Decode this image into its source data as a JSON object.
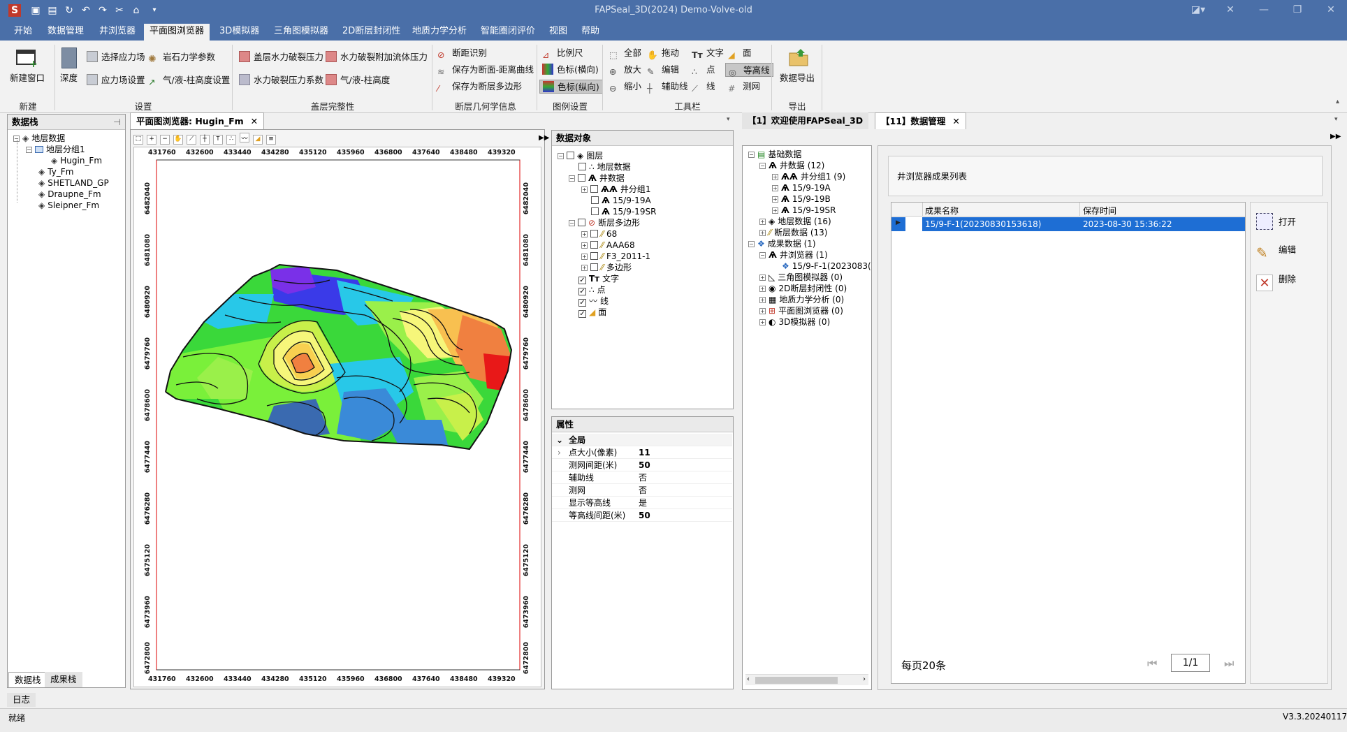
{
  "app": {
    "title": "FAPSeal_3D(2024) Demo-Volve-old",
    "version": "V3.3.20240117",
    "status": "就绪",
    "log_label": "日志"
  },
  "menu": [
    "开始",
    "数据管理",
    "井浏览器",
    "平面图浏览器",
    "3D模拟器",
    "三角图模拟器",
    "2D断层封闭性",
    "地质力学分析",
    "智能圈闭评价",
    "视图",
    "帮助"
  ],
  "menu_active": "平面图浏览器",
  "ribbon": {
    "new_window": "新建窗口",
    "depth": "深度",
    "select_stress": "选择应力场",
    "rock_params": "岩石力学参数",
    "stress_setting": "应力场设置",
    "gas_oil_height_setting": "气/液-柱高度设置",
    "caprock_frac_pressure": "盖层水力破裂压力",
    "frac_extra_pressure": "水力破裂附加流体压力",
    "frac_pressure_coef": "水力破裂压力系数",
    "gas_oil_height": "气/液-柱高度",
    "fault_identify": "断距识别",
    "save_fault_curve": "保存为断面-距离曲线",
    "save_fault_polygon": "保存为断层多边形",
    "scale": "比例尺",
    "colorbar_h": "色标(横向)",
    "colorbar_v": "色标(纵向)",
    "all": "全部",
    "drag": "拖动",
    "text": "文字",
    "face": "面",
    "zoom_in": "放大",
    "edit": "编辑",
    "point": "点",
    "contour": "等高线",
    "zoom_out": "缩小",
    "aux_line": "辅助线",
    "line": "线",
    "survey_net": "测网",
    "export_data": "数据导出",
    "groups": [
      "新建",
      "设置",
      "盖层完整性",
      "断层几何学信息",
      "图例设置",
      "工具栏",
      "导出"
    ]
  },
  "data_tree_panel": {
    "title": "数据栈",
    "items": [
      "地层数据",
      "地层分组1",
      "Hugin_Fm",
      "Ty_Fm",
      "SHETLAND_GP",
      "Draupne_Fm",
      "Sleipner_Fm"
    ],
    "bottom_tabs": [
      "数据栈",
      "成果栈"
    ]
  },
  "map_panel": {
    "tab_title": "平面图浏览器: Hugin_Fm",
    "x_ticks": [
      "431760",
      "432600",
      "433440",
      "434280",
      "435120",
      "435960",
      "436800",
      "437640",
      "438480",
      "439320"
    ],
    "y_ticks": [
      "6482040",
      "6481080",
      "6480920",
      "6479760",
      "6478600",
      "6477440",
      "6476280",
      "6475120",
      "6473960",
      "6472800"
    ]
  },
  "data_objects": {
    "title": "数据对象",
    "items": [
      {
        "label": "图层",
        "checked": false
      },
      {
        "label": "地层数据",
        "checked": false
      },
      {
        "label": "井数据",
        "checked": false
      },
      {
        "label": "井分组1",
        "checked": false
      },
      {
        "label": "15/9-19A",
        "checked": false
      },
      {
        "label": "15/9-19SR",
        "checked": false
      },
      {
        "label": "断层多边形",
        "checked": false
      },
      {
        "label": "68",
        "checked": false
      },
      {
        "label": "AAA68",
        "checked": false
      },
      {
        "label": "F3_2011-1",
        "checked": false
      },
      {
        "label": "多边形",
        "checked": false
      },
      {
        "label": "文字",
        "checked": true
      },
      {
        "label": "点",
        "checked": true
      },
      {
        "label": "线",
        "checked": true
      },
      {
        "label": "面",
        "checked": true
      }
    ]
  },
  "properties": {
    "title": "属性",
    "section": "全局",
    "rows": [
      {
        "k": "点大小(像素)",
        "v": "11"
      },
      {
        "k": "测网间距(米)",
        "v": "50"
      },
      {
        "k": "辅助线",
        "v": "否"
      },
      {
        "k": "测网",
        "v": "否"
      },
      {
        "k": "显示等高线",
        "v": "是"
      },
      {
        "k": "等高线间距(米)",
        "v": "50"
      }
    ]
  },
  "right_tabs": [
    "【1】欢迎使用FAPSeal_3D",
    "【11】数据管理"
  ],
  "data_mgmt_tree": [
    "基础数据",
    "井数据 (12)",
    "井分组1 (9)",
    "15/9-19A",
    "15/9-19B",
    "15/9-19SR",
    "地层数据 (16)",
    "断层数据 (13)",
    "成果数据 (1)",
    "井浏览器 (1)",
    "15/9-F-1(2023083(",
    "三角图模拟器 (0)",
    "2D断层封闭性 (0)",
    "地质力学分析 (0)",
    "平面图浏览器 (0)",
    "3D模拟器 (0)"
  ],
  "results": {
    "header_title": "井浏览器成果列表",
    "columns": [
      "成果名称",
      "保存时间"
    ],
    "rows": [
      {
        "name": "15/9-F-1(20230830153618)",
        "time": "2023-08-30 15:36:22"
      }
    ],
    "per_page": "每页20条",
    "page": "1/1",
    "actions": [
      "打开",
      "编辑",
      "删除"
    ]
  }
}
